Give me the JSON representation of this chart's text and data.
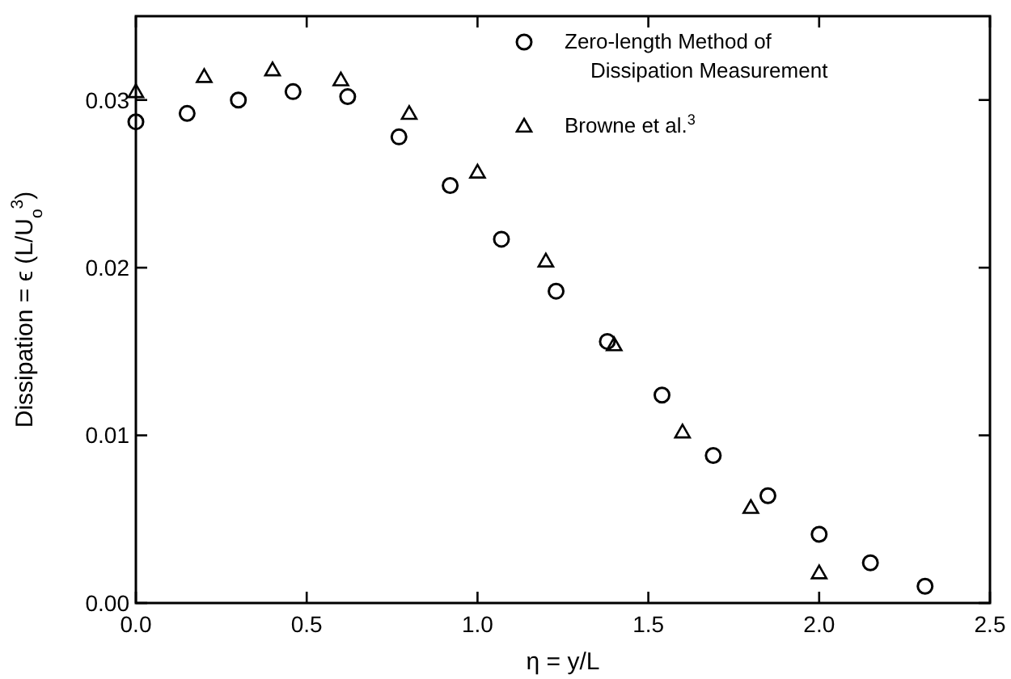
{
  "chart_data": {
    "type": "scatter",
    "xlabel": "η = y/L",
    "ylabel": "Dissipation = ϵ (L/U$_{o}$$^{3}$)",
    "xlim": [
      0,
      2.5
    ],
    "ylim": [
      0,
      0.035
    ],
    "xticks": [
      {
        "value": 0,
        "label": "0.0"
      },
      {
        "value": 0.5,
        "label": "0.5"
      },
      {
        "value": 1,
        "label": "1.0"
      },
      {
        "value": 1.5,
        "label": "1.5"
      },
      {
        "value": 2,
        "label": "2.0"
      },
      {
        "value": 2.5,
        "label": "2.5"
      }
    ],
    "yticks": [
      {
        "value": 0,
        "label": "0.00"
      },
      {
        "value": 0.01,
        "label": "0.01"
      },
      {
        "value": 0.02,
        "label": "0.02"
      },
      {
        "value": 0.03,
        "label": "0.03"
      }
    ],
    "grid": false,
    "legend": "top right",
    "series": [
      {
        "name": "Zero-length Method of\nDissipation Measurement",
        "color": "#000000",
        "marker": "circle",
        "x": [
          0,
          0.15,
          0.3,
          0.46,
          0.62,
          0.77,
          0.92,
          1.07,
          1.23,
          1.38,
          1.54,
          1.69,
          1.85,
          2.0,
          2.15,
          2.31
        ],
        "values": [
          0.0287,
          0.0292,
          0.03,
          0.0305,
          0.0302,
          0.0278,
          0.0249,
          0.0217,
          0.0186,
          0.0156,
          0.0124,
          0.0088,
          0.0064,
          0.0041,
          0.0024,
          0.001
        ]
      },
      {
        "name": "Browne et al.$^{3}$",
        "color": "#000000",
        "marker": "triangle",
        "x": [
          0,
          0.2,
          0.4,
          0.6,
          0.8,
          1.0,
          1.2,
          1.4,
          1.6,
          1.8,
          2.0
        ],
        "values": [
          0.0305,
          0.0314,
          0.0318,
          0.0312,
          0.0292,
          0.0257,
          0.0204,
          0.0154,
          0.0102,
          0.0057,
          0.0018
        ]
      }
    ]
  }
}
